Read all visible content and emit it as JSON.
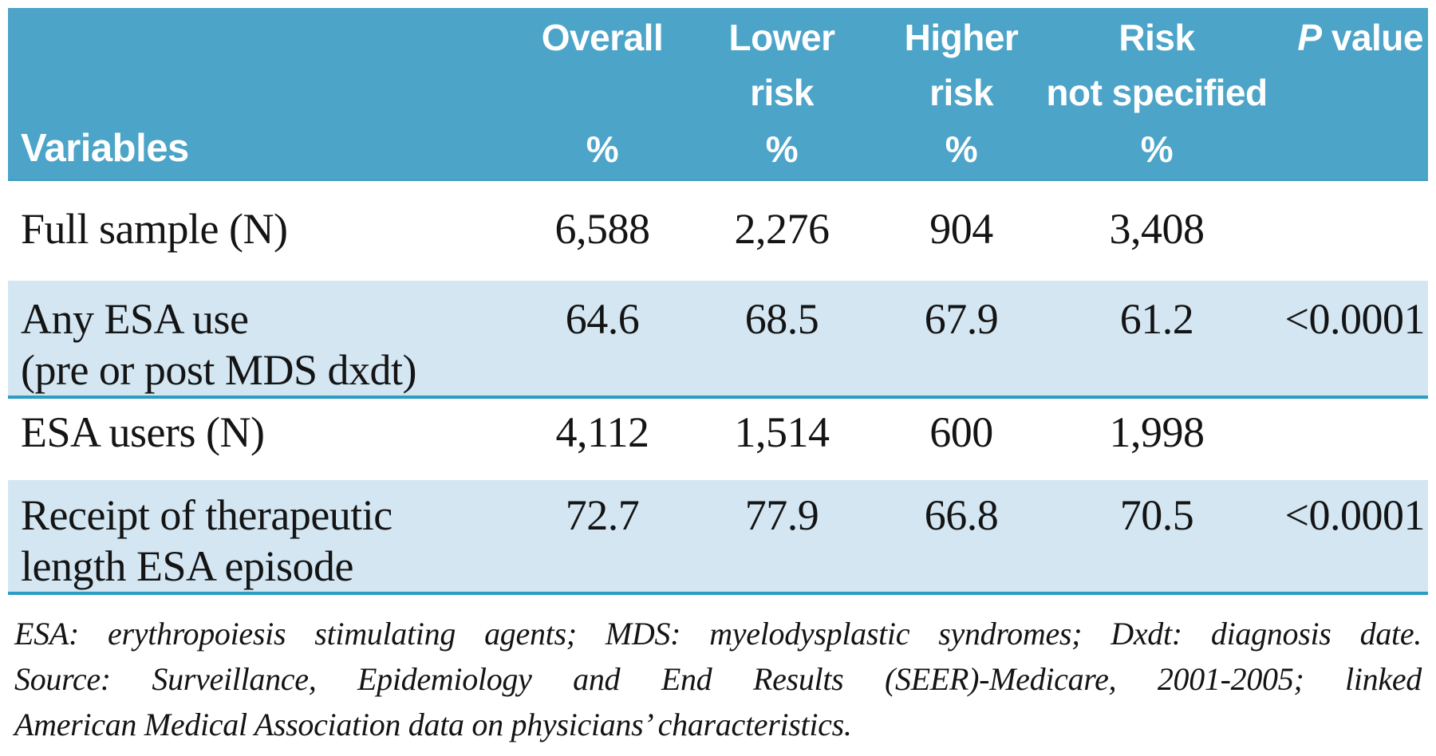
{
  "table": {
    "colors": {
      "header_bg": "#4CA4C8",
      "row_alt_bg": "#D3E6F2",
      "divider": "#2C9CC2",
      "header_edge": "#3D9CC0",
      "header_text": "#FFFFFF",
      "body_text": "#141414"
    },
    "header": {
      "variables": "Variables",
      "overall": {
        "line1": "Overall",
        "unit": "%"
      },
      "lower": {
        "line1": "Lower",
        "line2": "risk",
        "unit": "%"
      },
      "higher": {
        "line1": "Higher",
        "line2": "risk",
        "unit": "%"
      },
      "risk_not_specified": {
        "line1": "Risk",
        "line2": "not specified",
        "unit": "%"
      },
      "p_value": {
        "italic": "P",
        "rest": "value"
      }
    },
    "rows": [
      {
        "label_line1": "Full sample (N)",
        "label_line2": "",
        "overall": "6,588",
        "lower_risk": "2,276",
        "higher_risk": "904",
        "risk_not_specified": "3,408",
        "p_value": ""
      },
      {
        "label_line1": "Any ESA use",
        "label_line2": "(pre or post MDS dxdt)",
        "overall": "64.6",
        "lower_risk": "68.5",
        "higher_risk": "67.9",
        "risk_not_specified": "61.2",
        "p_value": "<0.0001"
      },
      {
        "label_line1": "ESA users (N)",
        "label_line2": "",
        "overall": "4,112",
        "lower_risk": "1,514",
        "higher_risk": "600",
        "risk_not_specified": "1,998",
        "p_value": ""
      },
      {
        "label_line1": "Receipt of therapeutic",
        "label_line2": "length ESA episode",
        "overall": "72.7",
        "lower_risk": "77.9",
        "higher_risk": "66.8",
        "risk_not_specified": "70.5",
        "p_value": "<0.0001"
      }
    ]
  },
  "footnote": {
    "line1": "ESA: erythropoiesis stimulating agents; MDS: myelodysplastic syndromes; Dxdt: diagnosis date.",
    "line2": "Source: Surveillance, Epidemiology and End Results (SEER)-Medicare, 2001-2005; linked",
    "line3": "American Medical Association data on physicians’ characteristics."
  }
}
